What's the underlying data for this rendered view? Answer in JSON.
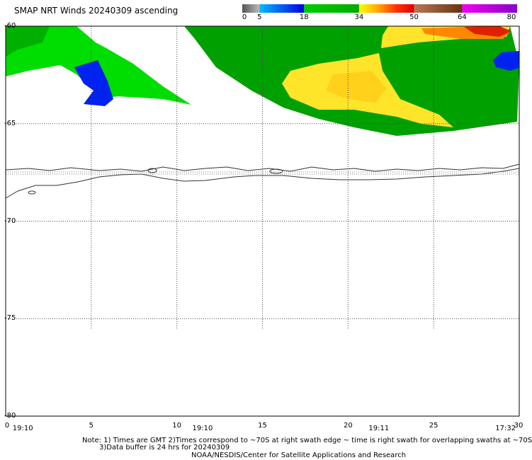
{
  "title": "SMAP NRT Winds 20240309 ascending",
  "colorbar": {
    "labels": [
      "0",
      "5",
      "18",
      "34",
      "50",
      "64",
      "80"
    ],
    "segments": [
      {
        "from": 0,
        "to": 5,
        "colors": [
          "#555555",
          "#bbbbbb"
        ]
      },
      {
        "from": 5,
        "to": 18,
        "colors": [
          "#00bbff",
          "#0000dd"
        ]
      },
      {
        "from": 18,
        "to": 34,
        "colors": [
          "#00cc00",
          "#00aa00"
        ]
      },
      {
        "from": 34,
        "to": 50,
        "colors": [
          "#ffff00",
          "#ffaa00",
          "#ff3300",
          "#dd0000"
        ]
      },
      {
        "from": 50,
        "to": 64,
        "colors": [
          "#bb7755",
          "#663311"
        ]
      },
      {
        "from": 64,
        "to": 80,
        "colors": [
          "#ee00ee",
          "#8800cc"
        ]
      }
    ]
  },
  "map": {
    "lat_range": [
      -80,
      -60
    ],
    "lon_range": [
      0,
      30
    ],
    "lat_labels": [
      "-60",
      "-65",
      "-70",
      "-75",
      "-80"
    ],
    "lon_labels": [
      "0",
      "5",
      "10",
      "15",
      "20",
      "25",
      "30"
    ],
    "time_labels": [
      {
        "text": "19:10",
        "lon": 1.0
      },
      {
        "text": "19:10",
        "lon": 11.5
      },
      {
        "text": "19:11",
        "lon": 21.8
      },
      {
        "text": "17:32",
        "lon": 29.2
      }
    ],
    "wind_colors": {
      "green": "#00a000",
      "light_green": "#00dd00",
      "yellow": "#ffee33",
      "blue": "#0022ee",
      "red": "#ee3300"
    }
  },
  "notes": {
    "line1": "Note: 1) Times are GMT 2)Times correspond to ~70S at right swath edge ~ time is right swath for overlapping swaths at ~70S",
    "line2": "3)Data buffer is 24 hrs for 20240309",
    "line3": "NOAA/NESDIS/Center for Satellite Applications and Research"
  }
}
